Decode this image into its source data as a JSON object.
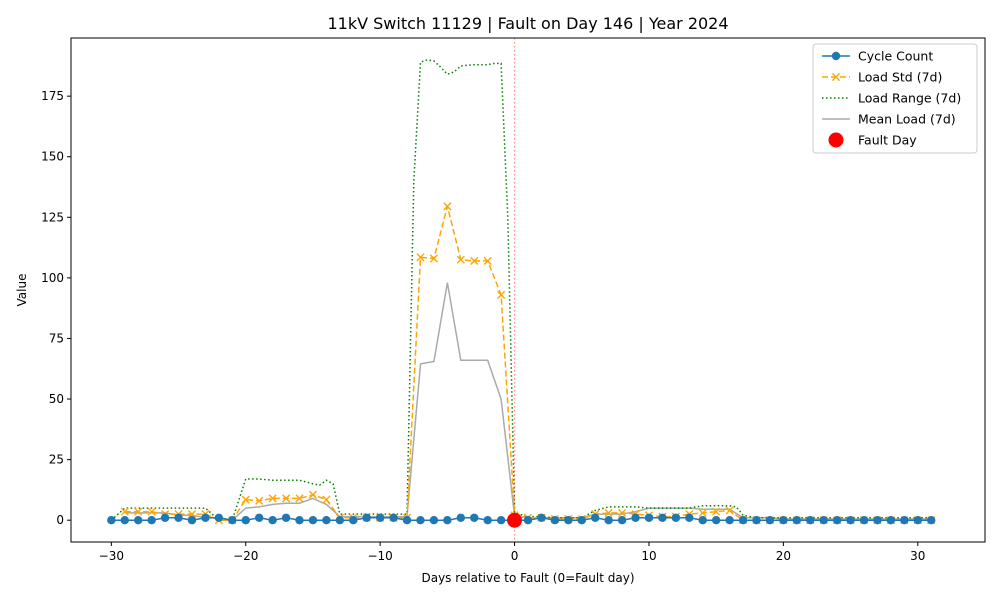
{
  "chart_data": {
    "type": "line",
    "title": "11kV Switch 11129 | Fault on Day 146 | Year 2024",
    "xlabel": "Days relative to Fault (0=Fault day)",
    "ylabel": "Value",
    "xlim": [
      -33,
      35
    ],
    "ylim": [
      -9,
      199
    ],
    "xticks": [
      -30,
      -20,
      -10,
      0,
      10,
      20,
      30
    ],
    "yticks": [
      0,
      25,
      50,
      75,
      100,
      125,
      150,
      175
    ],
    "fault_x": 0,
    "legend_position": "top-right",
    "grid": false,
    "series": [
      {
        "name": "Cycle Count",
        "color": "#1f77b4",
        "style": "solid-marker-circle",
        "x": [
          -30,
          -29,
          -28,
          -27,
          -26,
          -25,
          -24,
          -23,
          -22,
          -21,
          -20,
          -19,
          -18,
          -17,
          -16,
          -15,
          -14,
          -13,
          -12,
          -11,
          -10,
          -9,
          -8,
          -7,
          -6,
          -5,
          -4,
          -3,
          -2,
          -1,
          0,
          1,
          2,
          3,
          4,
          5,
          6,
          7,
          8,
          9,
          10,
          11,
          12,
          13,
          14,
          15,
          16,
          17,
          18,
          19,
          20,
          21,
          22,
          23,
          24,
          25,
          26,
          27,
          28,
          29,
          30,
          31
        ],
        "values": [
          0,
          0,
          0,
          0,
          1,
          1,
          0,
          1,
          1,
          0,
          0,
          1,
          0,
          1,
          0,
          0,
          0,
          0,
          0,
          1,
          1,
          1,
          0,
          0,
          0,
          0,
          1,
          1,
          0,
          0,
          0,
          0,
          1,
          0,
          0,
          0,
          1,
          0,
          0,
          1,
          1,
          1,
          1,
          1,
          0,
          0,
          0,
          0,
          0,
          0,
          0,
          0,
          0,
          0,
          0,
          0,
          0,
          0,
          0,
          0,
          0,
          0
        ]
      },
      {
        "name": "Load Std (7d)",
        "color": "#ffa500",
        "style": "dashed-marker-x",
        "x": [
          -29,
          -28,
          -27,
          -26,
          -25,
          -24,
          -23,
          -22,
          -21,
          -20,
          -19,
          -18,
          -17,
          -16,
          -15,
          -14,
          -13,
          -12,
          -11,
          -10,
          -9,
          -8,
          -7,
          -6,
          -5,
          -4,
          -3,
          -2,
          -1,
          0,
          1,
          2,
          3,
          4,
          5,
          6,
          7,
          8,
          9,
          10,
          11,
          12,
          13,
          14,
          15,
          16,
          17,
          18,
          19,
          20,
          21,
          22,
          23,
          24,
          25,
          26,
          27,
          28,
          29,
          30,
          31
        ],
        "values": [
          3.5,
          3.5,
          3.5,
          2.5,
          2.5,
          2.5,
          2.5,
          0,
          0,
          8.5,
          8,
          9,
          9,
          9,
          10.5,
          8.5,
          1,
          1,
          1,
          1,
          1,
          1,
          108.5,
          108,
          129.5,
          107.5,
          107,
          107,
          93,
          2,
          1,
          1,
          0.5,
          0.5,
          0.5,
          2.5,
          3,
          3,
          2.5,
          2,
          1.5,
          1.5,
          2.5,
          3,
          3.5,
          4,
          0,
          0,
          0,
          0,
          0,
          0,
          0,
          0,
          0,
          0,
          0,
          0,
          0,
          0,
          0
        ]
      },
      {
        "name": "Load Range (7d)",
        "color": "#008000",
        "style": "dotted",
        "x": [
          -30,
          -29,
          -28,
          -27,
          -26,
          -25,
          -24,
          -23,
          -22,
          -21,
          -20,
          -19,
          -18,
          -17,
          -16,
          -15,
          -14.5,
          -14,
          -13.5,
          -13,
          -12,
          -11,
          -10,
          -9,
          -8,
          -7.5,
          -7,
          -6.5,
          -6,
          -5.5,
          -5,
          -4.5,
          -4,
          -3,
          -2,
          -1.5,
          -1,
          -0.5,
          0,
          1,
          2,
          3,
          4,
          5,
          6,
          7,
          8,
          9,
          10,
          11,
          12,
          13,
          14,
          15,
          16,
          16.5,
          17,
          18,
          19,
          20,
          21,
          22,
          23,
          24,
          25,
          26,
          27,
          28,
          29,
          30,
          31
        ],
        "values": [
          0,
          5,
          5,
          5,
          5,
          5,
          5,
          5,
          0,
          0,
          17,
          17,
          16.5,
          16.5,
          16.5,
          15,
          14.5,
          16.5,
          15,
          2.5,
          2.5,
          2.5,
          2.5,
          2.5,
          2.5,
          140,
          189,
          190,
          189.5,
          187,
          184,
          185,
          187.5,
          188,
          188,
          188.5,
          188.5,
          125,
          3,
          1.5,
          1.5,
          1,
          1,
          1,
          4,
          5.5,
          5.5,
          5.5,
          5,
          5,
          5,
          5,
          6,
          6,
          6,
          5.5,
          2,
          1,
          1,
          1,
          1,
          1,
          1,
          1,
          1,
          1,
          1,
          1,
          1,
          1,
          1
        ]
      },
      {
        "name": "Mean Load (7d)",
        "color": "#aaaaaa",
        "style": "solid",
        "x": [
          -29,
          -28,
          -27,
          -26,
          -25,
          -24,
          -23,
          -22,
          -21,
          -20,
          -19,
          -18,
          -17,
          -16,
          -15,
          -14,
          -13,
          -12,
          -11,
          -10,
          -9,
          -8,
          -7,
          -6,
          -5,
          -4,
          -3,
          -2,
          -1,
          0,
          1,
          2,
          3,
          4,
          5,
          6,
          7,
          8,
          9,
          10,
          11,
          12,
          13,
          14,
          15,
          16,
          17,
          18,
          19,
          20,
          21,
          22,
          23,
          24,
          25,
          26,
          27,
          28,
          29,
          30,
          31
        ],
        "values": [
          3,
          3,
          3,
          3,
          2,
          2,
          1,
          1,
          0,
          5,
          5.5,
          6.5,
          7,
          7,
          9,
          6.5,
          1.5,
          1.5,
          1.5,
          1.5,
          1.5,
          1.5,
          64.5,
          65.5,
          98,
          66,
          66,
          66,
          50,
          1.5,
          1,
          1,
          1,
          1,
          1,
          2.5,
          2.5,
          2.5,
          3.5,
          5,
          5,
          5,
          5,
          4.5,
          4.5,
          4.5,
          1,
          1,
          1,
          0.5,
          0.5,
          0.5,
          0.5,
          0.5,
          0.5,
          0.5,
          0.5,
          0.5,
          0.5,
          0.5,
          0.5
        ]
      }
    ],
    "fault_marker": {
      "name": "Fault Day",
      "x": 0,
      "y": 0,
      "color": "#ff0000"
    }
  }
}
